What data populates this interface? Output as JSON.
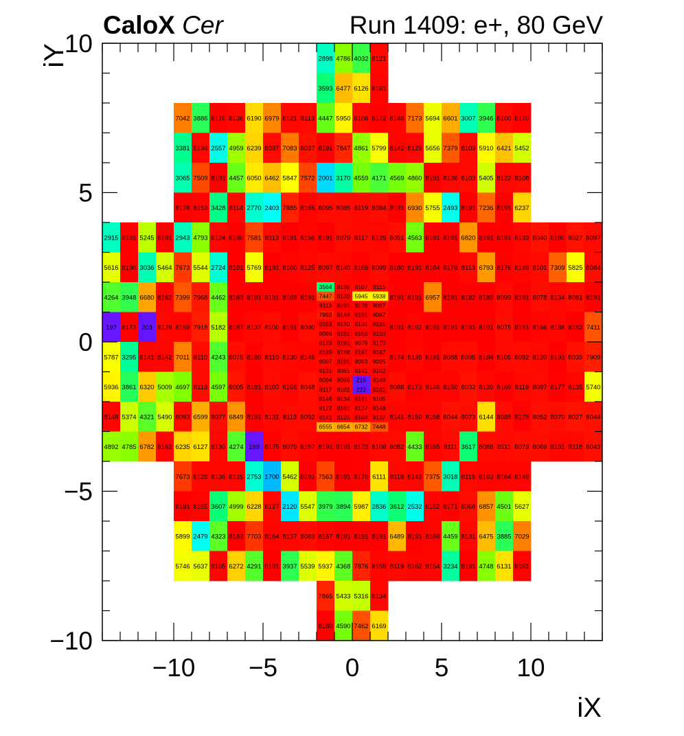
{
  "title": {
    "detector": "CaloX",
    "channel": "Cer",
    "run": "Run 1409: e+, 80 GeV"
  },
  "chart_data": {
    "type": "heatmap",
    "xlabel": "iX",
    "ylabel": "iY",
    "xlim": [
      -14,
      14
    ],
    "ylim": [
      -10,
      10
    ],
    "xticks": [
      -10,
      -5,
      0,
      5,
      10
    ],
    "yticks": [
      -10,
      -5,
      0,
      5,
      10
    ],
    "tick_labels_x": [
      "−10",
      "−5",
      "0",
      "5",
      "10"
    ],
    "tick_labels_y": [
      "−10",
      "−5",
      "0",
      "5",
      "10"
    ],
    "zmax": 8191,
    "colormap": [
      "#7c00ff",
      "#0080ff",
      "#00ffff",
      "#00ff80",
      "#80ff00",
      "#ffff00",
      "#ff8000",
      "#ff0000"
    ],
    "coarse_cells": [
      {
        "y": 9,
        "x": [
          -2,
          -1,
          0,
          1
        ],
        "v": [
          2898,
          4786,
          4032,
          8121
        ]
      },
      {
        "y": 8,
        "x": [
          -2,
          -1,
          0,
          1
        ],
        "v": [
          3593,
          6477,
          6126,
          8161
        ]
      },
      {
        "y": 7,
        "x": [
          -10,
          -9,
          -8,
          -7,
          -6,
          -5,
          -4,
          -3,
          -2,
          -1,
          0,
          1,
          2,
          3,
          4,
          5,
          6,
          7,
          8,
          9
        ],
        "v": [
          7042,
          3886,
          8170,
          8136,
          6190,
          6979,
          8121,
          8113,
          4447,
          5950,
          8106,
          8172,
          8148,
          7173,
          5694,
          6601,
          3007,
          3946,
          8100,
          8170
        ]
      },
      {
        "y": 6,
        "x": [
          -10,
          -9,
          -8,
          -7,
          -6,
          -5,
          -4,
          -3,
          -2,
          -1,
          0,
          1,
          2,
          3,
          4,
          5,
          6,
          7,
          8,
          9
        ],
        "v": [
          3381,
          8134,
          2557,
          4959,
          6239,
          8097,
          7083,
          8037,
          8191,
          7847,
          4861,
          5799,
          8142,
          8129,
          5656,
          7379,
          8103,
          5910,
          6421,
          5452
        ]
      },
      {
        "y": 5,
        "x": [
          -10,
          -9,
          -8,
          -7,
          -6,
          -5,
          -4,
          -3,
          -2,
          -1,
          0,
          1,
          2,
          3,
          4,
          5,
          6,
          7,
          8,
          9
        ],
        "v": [
          3065,
          7509,
          8191,
          4457,
          6050,
          6462,
          5847,
          7572,
          2001,
          3170,
          4559,
          4171,
          4569,
          4860,
          8191,
          8136,
          8103,
          5405,
          8122,
          8108
        ]
      },
      {
        "y": 4,
        "x": [
          -10,
          -9,
          -8,
          -7,
          -6,
          -5,
          -4,
          -3,
          -2,
          -1,
          0,
          1,
          2,
          3,
          4,
          5,
          6,
          7,
          8,
          9
        ],
        "v": [
          8178,
          8153,
          3428,
          8114,
          2770,
          2403,
          7885,
          8165,
          8095,
          8085,
          8119,
          8084,
          8191,
          6930,
          5755,
          2493,
          8191,
          7236,
          8191,
          6237
        ]
      },
      {
        "y": 3,
        "x": [
          -14,
          -13,
          -12,
          -11,
          -10,
          -9,
          -8,
          -7,
          -6,
          -5,
          -4,
          -3,
          -2,
          -1,
          0,
          1,
          2,
          3,
          4,
          5,
          6,
          7,
          8,
          9,
          10,
          11,
          12,
          13
        ],
        "v": [
          2915,
          8191,
          5245,
          8191,
          2943,
          4793,
          8124,
          8180,
          7581,
          8113,
          8191,
          8156,
          8191,
          8079,
          8117,
          8129,
          8051,
          4563,
          8191,
          8191,
          6820,
          8191,
          8191,
          8133,
          8040,
          8180,
          8027,
          8097
        ]
      },
      {
        "y": 2,
        "x": [
          -14,
          -13,
          -12,
          -11,
          -10,
          -9,
          -8,
          -7,
          -6,
          -5,
          -4,
          -3,
          -2,
          -1,
          0,
          1,
          2,
          3,
          4,
          5,
          6,
          7,
          8,
          9,
          10,
          11,
          12,
          13
        ],
        "v": [
          5616,
          8190,
          3036,
          5464,
          7673,
          5544,
          2724,
          8191,
          5769,
          8191,
          8160,
          8125,
          8097,
          8140,
          8169,
          8099,
          8180,
          8191,
          8184,
          8179,
          8113,
          6793,
          8176,
          8149,
          8101,
          7309,
          5825,
          8084
        ]
      },
      {
        "y": 1,
        "x": [
          -14,
          -13,
          -12,
          -11,
          -10,
          -9,
          -8,
          -7,
          -6,
          -5,
          -4,
          -3,
          -2,
          2,
          3,
          4,
          5,
          6,
          7,
          8,
          9,
          10,
          11,
          12,
          13
        ],
        "v": [
          4264,
          3948,
          6680,
          8162,
          7399,
          7968,
          4462,
          8183,
          8191,
          8191,
          8169,
          8191,
          8191,
          8191,
          8191,
          6957,
          8191,
          8182,
          8189,
          8099,
          8191,
          8078,
          8134,
          8081,
          8191
        ]
      },
      {
        "y": 0,
        "x": [
          -14,
          -13,
          -12,
          -11,
          -10,
          -9,
          -8,
          -7,
          -6,
          -5,
          -4,
          -3,
          2,
          3,
          4,
          5,
          6,
          7,
          8,
          9,
          10,
          11,
          12,
          13
        ],
        "v": [
          197,
          8173,
          203,
          8129,
          8159,
          7918,
          5182,
          8187,
          8137,
          8100,
          8191,
          8090,
          8191,
          8162,
          8191,
          8191,
          8191,
          8191,
          8075,
          8191,
          8166,
          8138,
          8182,
          7411
        ]
      },
      {
        "y": -1,
        "x": [
          -14,
          -13,
          -12,
          -11,
          -10,
          -9,
          -8,
          -7,
          -6,
          -5,
          -4,
          -3,
          2,
          3,
          4,
          5,
          6,
          7,
          8,
          9,
          10,
          11,
          12,
          13
        ],
        "v": [
          5787,
          3295,
          8141,
          8142,
          7011,
          8110,
          4243,
          8075,
          8180,
          8110,
          8130,
          8146,
          8174,
          8139,
          8191,
          8088,
          8095,
          8184,
          8105,
          8092,
          8120,
          8191,
          8035,
          7909
        ]
      },
      {
        "y": -2,
        "x": [
          -14,
          -13,
          -12,
          -11,
          -10,
          -9,
          -8,
          -7,
          -6,
          -5,
          -4,
          -3,
          2,
          3,
          4,
          5,
          6,
          7,
          8,
          9,
          10,
          11,
          12,
          13
        ],
        "v": [
          5936,
          3861,
          6320,
          5009,
          4697,
          8113,
          4597,
          8005,
          8191,
          8103,
          8156,
          8048,
          8088,
          8173,
          8146,
          8150,
          8032,
          8139,
          8169,
          8119,
          8097,
          8177,
          8135,
          5740
        ]
      },
      {
        "y": -3,
        "x": [
          -14,
          -13,
          -12,
          -11,
          -10,
          -9,
          -8,
          -7,
          -6,
          -5,
          -4,
          -3,
          -2,
          -1,
          0,
          1,
          2,
          3,
          4,
          5,
          6,
          7,
          8,
          9,
          10,
          11,
          12,
          13
        ],
        "v": [
          8148,
          5374,
          4321,
          5490,
          8093,
          6599,
          8077,
          6849,
          8191,
          8131,
          8113,
          8092,
          8163,
          8121,
          8153,
          8128,
          8141,
          8150,
          8158,
          8044,
          8073,
          6144,
          8089,
          8179,
          8052,
          8070,
          8027,
          8044
        ]
      },
      {
        "y": -4,
        "x": [
          -14,
          -13,
          -12,
          -11,
          -10,
          -9,
          -8,
          -7,
          -6,
          -5,
          -4,
          -3,
          -2,
          -1,
          0,
          1,
          2,
          3,
          4,
          5,
          6,
          7,
          8,
          9,
          10,
          11,
          12,
          13
        ],
        "v": [
          4892,
          4785,
          6782,
          8162,
          6235,
          6127,
          8130,
          4274,
          199,
          8175,
          8079,
          8157,
          8191,
          8191,
          8173,
          8108,
          8082,
          4433,
          8165,
          8111,
          3617,
          8088,
          8111,
          8073,
          8069,
          8131,
          8118,
          8043
        ]
      },
      {
        "y": -5,
        "x": [
          -10,
          -9,
          -8,
          -7,
          -6,
          -5,
          -4,
          -3,
          -2,
          -1,
          0,
          1,
          2,
          3,
          4,
          5,
          6,
          7,
          8,
          9
        ],
        "v": [
          7673,
          8125,
          8136,
          8125,
          2753,
          1700,
          5462,
          8191,
          7563,
          8191,
          8170,
          6111,
          8118,
          8143,
          7375,
          3018,
          8115,
          8163,
          8164,
          8149
        ]
      },
      {
        "y": -6,
        "x": [
          -10,
          -9,
          -8,
          -7,
          -6,
          -5,
          -4,
          -3,
          -2,
          -1,
          0,
          1,
          2,
          3,
          4,
          5,
          6,
          7,
          8,
          9
        ],
        "v": [
          8191,
          8165,
          3607,
          4999,
          6228,
          8127,
          2120,
          5547,
          3979,
          3894,
          5987,
          2836,
          3612,
          2532,
          8152,
          8171,
          8068,
          6857,
          4501,
          5627
        ]
      },
      {
        "y": -7,
        "x": [
          -10,
          -9,
          -8,
          -7,
          -6,
          -5,
          -4,
          -3,
          -2,
          -1,
          0,
          1,
          2,
          3,
          4,
          5,
          6,
          7,
          8,
          9
        ],
        "v": [
          5899,
          2479,
          4323,
          8183,
          7703,
          8164,
          8137,
          8083,
          8167,
          8191,
          8191,
          8191,
          6489,
          8191,
          8166,
          4459,
          8131,
          6475,
          3885,
          7029
        ]
      },
      {
        "y": -8,
        "x": [
          -10,
          -9,
          -8,
          -7,
          -6,
          -5,
          -4,
          -3,
          -2,
          -1,
          0,
          1,
          2,
          3,
          4,
          5,
          6,
          7,
          8,
          9
        ],
        "v": [
          5746,
          5637,
          8165,
          6272,
          4291,
          8191,
          3937,
          5539,
          5937,
          4368,
          7876,
          8159,
          8119,
          8162,
          8154,
          3234,
          8191,
          4748,
          6131,
          8161
        ]
      },
      {
        "y": -9,
        "x": [
          -2,
          -1,
          0,
          1
        ],
        "v": [
          7865,
          5433,
          5316,
          8134
        ]
      },
      {
        "y": -10,
        "x": [
          -2,
          -1,
          0,
          1
        ],
        "v": [
          8180,
          4590,
          7462,
          6169
        ]
      }
    ],
    "fine_region": {
      "x0": -2,
      "x1": 2,
      "y0": -3,
      "y1": 2
    },
    "fine_cells": [
      {
        "row": 0,
        "v": [
          3564,
          8135,
          8107,
          8115
        ]
      },
      {
        "row": 1,
        "v": [
          7447,
          8130,
          5945,
          5938
        ]
      },
      {
        "row": 2,
        "v": [
          8113,
          8191,
          8178,
          8097
        ]
      },
      {
        "row": 3,
        "v": [
          7992,
          8144,
          8191,
          8087
        ]
      },
      {
        "row": 4,
        "v": [
          8163,
          8130,
          8131,
          8191
        ]
      },
      {
        "row": 5,
        "v": [
          8086,
          8191,
          8163,
          8190
        ]
      },
      {
        "row": 6,
        "v": [
          8133,
          8191,
          8078,
          8170
        ]
      },
      {
        "row": 7,
        "v": [
          8169,
          8138,
          8161,
          8167
        ]
      },
      {
        "row": 8,
        "v": [
          8097,
          8191,
          8093,
          8095
        ]
      },
      {
        "row": 9,
        "v": [
          8131,
          8091,
          8141,
          8162
        ]
      },
      {
        "row": 10,
        "v": [
          8084,
          8096,
          215,
          8148
        ]
      },
      {
        "row": 11,
        "v": [
          8117,
          8102,
          222,
          8181
        ]
      },
      {
        "row": 12,
        "v": [
          8146,
          8134,
          8191,
          8105
        ]
      },
      {
        "row": 13,
        "v": [
          8122,
          8161,
          8127,
          8148
        ]
      },
      {
        "row": 14,
        "v": [
          8141,
          8125,
          8164,
          8137
        ]
      },
      {
        "row": 15,
        "v": [
          6555,
          6654,
          6732,
          7448
        ]
      }
    ]
  }
}
